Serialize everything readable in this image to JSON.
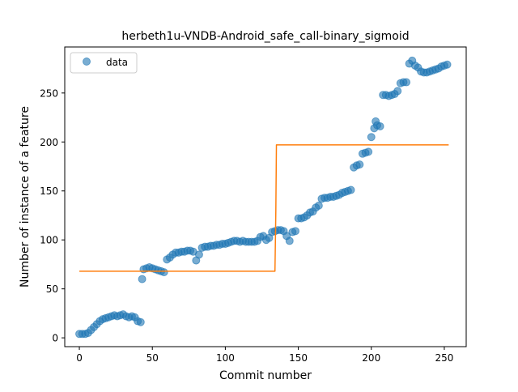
{
  "chart_data": {
    "type": "scatter",
    "title": "herbeth1u-VNDB-Android_safe_call-binary_sigmoid",
    "xlabel": "Commit number",
    "ylabel": "Number of instance of a feature",
    "xlim": [
      -10,
      265
    ],
    "ylim": [
      -9,
      297
    ],
    "xticks": [
      0,
      50,
      100,
      150,
      200,
      250
    ],
    "yticks": [
      0,
      50,
      100,
      150,
      200,
      250
    ],
    "xtick_labels": [
      "0",
      "50",
      "100",
      "150",
      "200",
      "250"
    ],
    "ytick_labels": [
      "0",
      "50",
      "100",
      "150",
      "200",
      "250"
    ],
    "grid": false,
    "legend": {
      "placement": "top-left",
      "entries": [
        "data"
      ]
    },
    "colors": {
      "data": "#1f77b4",
      "fit": "#ff7f0e"
    },
    "series": [
      {
        "name": "data",
        "kind": "scatter",
        "points": [
          [
            0,
            4
          ],
          [
            2,
            4
          ],
          [
            4,
            4
          ],
          [
            6,
            5
          ],
          [
            8,
            8
          ],
          [
            10,
            11
          ],
          [
            12,
            14
          ],
          [
            14,
            17
          ],
          [
            16,
            19
          ],
          [
            18,
            20
          ],
          [
            20,
            21
          ],
          [
            22,
            22
          ],
          [
            24,
            23
          ],
          [
            26,
            22
          ],
          [
            28,
            23
          ],
          [
            30,
            24
          ],
          [
            32,
            22
          ],
          [
            34,
            21
          ],
          [
            36,
            22
          ],
          [
            38,
            21
          ],
          [
            40,
            17
          ],
          [
            42,
            16
          ],
          [
            43,
            60
          ],
          [
            44,
            70
          ],
          [
            46,
            71
          ],
          [
            48,
            72
          ],
          [
            50,
            71
          ],
          [
            52,
            70
          ],
          [
            54,
            69
          ],
          [
            56,
            68
          ],
          [
            58,
            67
          ],
          [
            60,
            80
          ],
          [
            62,
            82
          ],
          [
            64,
            85
          ],
          [
            66,
            87
          ],
          [
            68,
            87
          ],
          [
            70,
            88
          ],
          [
            72,
            88
          ],
          [
            74,
            89
          ],
          [
            76,
            89
          ],
          [
            78,
            88
          ],
          [
            80,
            79
          ],
          [
            82,
            85
          ],
          [
            84,
            92
          ],
          [
            86,
            93
          ],
          [
            88,
            93
          ],
          [
            90,
            94
          ],
          [
            92,
            94
          ],
          [
            94,
            95
          ],
          [
            96,
            95
          ],
          [
            98,
            96
          ],
          [
            100,
            96
          ],
          [
            102,
            97
          ],
          [
            104,
            98
          ],
          [
            106,
            99
          ],
          [
            108,
            99
          ],
          [
            110,
            98
          ],
          [
            112,
            99
          ],
          [
            114,
            98
          ],
          [
            116,
            98
          ],
          [
            118,
            98
          ],
          [
            120,
            98
          ],
          [
            122,
            99
          ],
          [
            124,
            103
          ],
          [
            126,
            104
          ],
          [
            128,
            100
          ],
          [
            130,
            102
          ],
          [
            132,
            108
          ],
          [
            134,
            109
          ],
          [
            136,
            110
          ],
          [
            138,
            110
          ],
          [
            140,
            109
          ],
          [
            142,
            104
          ],
          [
            144,
            99
          ],
          [
            146,
            108
          ],
          [
            148,
            109
          ],
          [
            150,
            122
          ],
          [
            152,
            122
          ],
          [
            154,
            123
          ],
          [
            156,
            125
          ],
          [
            158,
            128
          ],
          [
            160,
            129
          ],
          [
            162,
            133
          ],
          [
            164,
            135
          ],
          [
            166,
            142
          ],
          [
            168,
            143
          ],
          [
            170,
            143
          ],
          [
            172,
            144
          ],
          [
            174,
            144
          ],
          [
            176,
            145
          ],
          [
            178,
            146
          ],
          [
            180,
            148
          ],
          [
            182,
            149
          ],
          [
            184,
            150
          ],
          [
            186,
            151
          ],
          [
            188,
            174
          ],
          [
            190,
            176
          ],
          [
            192,
            177
          ],
          [
            194,
            188
          ],
          [
            196,
            189
          ],
          [
            198,
            190
          ],
          [
            200,
            205
          ],
          [
            202,
            214
          ],
          [
            203,
            221
          ],
          [
            204,
            217
          ],
          [
            206,
            216
          ],
          [
            208,
            248
          ],
          [
            210,
            248
          ],
          [
            212,
            247
          ],
          [
            214,
            248
          ],
          [
            216,
            249
          ],
          [
            218,
            252
          ],
          [
            220,
            260
          ],
          [
            222,
            261
          ],
          [
            224,
            261
          ],
          [
            226,
            280
          ],
          [
            228,
            283
          ],
          [
            230,
            278
          ],
          [
            232,
            276
          ],
          [
            234,
            272
          ],
          [
            236,
            271
          ],
          [
            238,
            271
          ],
          [
            240,
            272
          ],
          [
            242,
            273
          ],
          [
            244,
            274
          ],
          [
            246,
            275
          ],
          [
            248,
            277
          ],
          [
            250,
            278
          ],
          [
            252,
            279
          ]
        ]
      },
      {
        "kind": "line",
        "x": [
          0,
          134,
          134.6,
          135,
          253
        ],
        "y": [
          68,
          68,
          130,
          197,
          197
        ]
      }
    ]
  }
}
